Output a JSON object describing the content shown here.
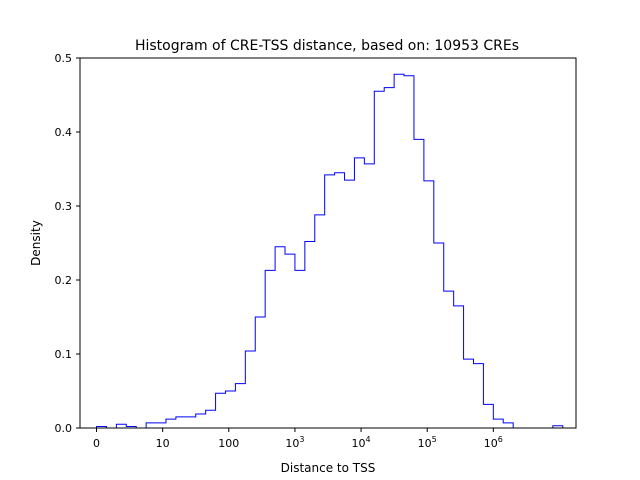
{
  "chart_data": {
    "type": "histogram",
    "title": "Histogram of CRE-TSS distance, based on: 10953 CREs",
    "xlabel": "Distance to TSS",
    "ylabel": "Density",
    "x_scale": "symlog-like (0, then log10)",
    "xlim": [
      -0.25,
      7.25
    ],
    "ylim": [
      0,
      0.5
    ],
    "y_ticks": [
      {
        "value": 0.0,
        "label": "0.0"
      },
      {
        "value": 0.1,
        "label": "0.1"
      },
      {
        "value": 0.2,
        "label": "0.2"
      },
      {
        "value": 0.3,
        "label": "0.3"
      },
      {
        "value": 0.4,
        "label": "0.4"
      },
      {
        "value": 0.5,
        "label": "0.5"
      }
    ],
    "x_ticks": [
      {
        "log10": 0,
        "base": "0",
        "exp": ""
      },
      {
        "log10": 1,
        "base": "10",
        "exp": ""
      },
      {
        "log10": 2,
        "base": "100",
        "exp": ""
      },
      {
        "log10": 3,
        "base": "10",
        "exp": "3"
      },
      {
        "log10": 4,
        "base": "10",
        "exp": "4"
      },
      {
        "log10": 5,
        "base": "10",
        "exp": "5"
      },
      {
        "log10": 6,
        "base": "10",
        "exp": "6"
      }
    ],
    "bin_edges_log10": [
      0.0,
      0.15,
      0.3,
      0.45,
      0.6,
      0.75,
      0.9,
      1.05,
      1.2,
      1.35,
      1.5,
      1.65,
      1.8,
      1.95,
      2.1,
      2.25,
      2.4,
      2.55,
      2.7,
      2.85,
      3.0,
      3.15,
      3.3,
      3.45,
      3.6,
      3.75,
      3.9,
      4.05,
      4.2,
      4.35,
      4.5,
      4.65,
      4.8,
      4.95,
      5.1,
      5.25,
      5.4,
      5.55,
      5.7,
      5.85,
      6.0,
      6.15,
      6.3,
      6.45,
      6.6,
      6.75,
      6.9,
      7.05
    ],
    "density": [
      0.002,
      0.0,
      0.005,
      0.002,
      0.0,
      0.007,
      0.007,
      0.012,
      0.015,
      0.015,
      0.019,
      0.024,
      0.047,
      0.05,
      0.06,
      0.104,
      0.15,
      0.213,
      0.245,
      0.235,
      0.213,
      0.252,
      0.288,
      0.342,
      0.345,
      0.335,
      0.365,
      0.357,
      0.455,
      0.46,
      0.478,
      0.476,
      0.39,
      0.334,
      0.25,
      0.185,
      0.165,
      0.093,
      0.087,
      0.032,
      0.012,
      0.007,
      0.0,
      0.0,
      0.0,
      0.0,
      0.003
    ],
    "line_color": "#0000ff"
  }
}
